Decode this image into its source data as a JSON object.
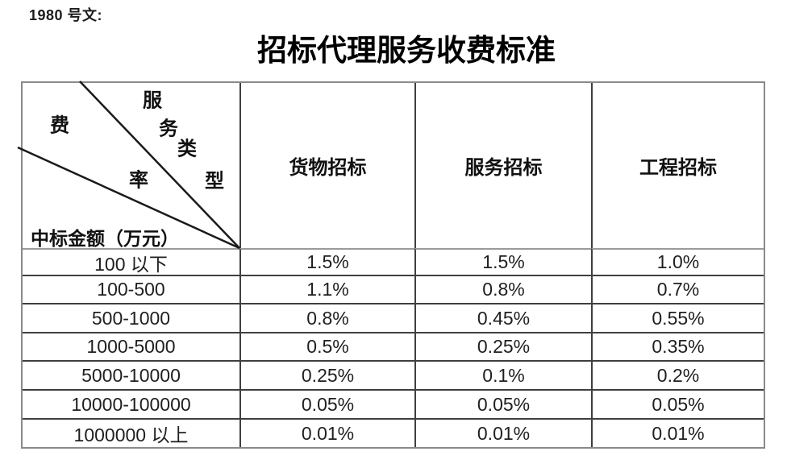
{
  "page": {
    "doc_ref": "1980 号文:",
    "title": "招标代理服务收费标准"
  },
  "table": {
    "corner": {
      "axis_top_right": "服务类型",
      "axis_middle": "费率",
      "axis_bottom_left": "中标金额（万元）"
    },
    "column_headers": [
      "货物招标",
      "服务招标",
      "工程招标"
    ],
    "rows": [
      {
        "amount_range": "100 以下",
        "values": [
          "1.5%",
          "1.5%",
          "1.0%"
        ]
      },
      {
        "amount_range": "100-500",
        "values": [
          "1.1%",
          "0.8%",
          "0.7%"
        ]
      },
      {
        "amount_range": "500-1000",
        "values": [
          "0.8%",
          "0.45%",
          "0.55%"
        ]
      },
      {
        "amount_range": "1000-5000",
        "values": [
          "0.5%",
          "0.25%",
          "0.35%"
        ]
      },
      {
        "amount_range": "5000-10000",
        "values": [
          "0.25%",
          "0.1%",
          "0.2%"
        ]
      },
      {
        "amount_range": "10000-100000",
        "values": [
          "0.05%",
          "0.05%",
          "0.05%"
        ]
      },
      {
        "amount_range": "1000000 以上",
        "values": [
          "0.01%",
          "0.01%",
          "0.01%"
        ]
      }
    ]
  },
  "colors": {
    "text": "#1c1c1c",
    "border_outer": "#8a8a8a",
    "border_inner": "#3f3f3f",
    "header_separator": "#9a9a9a",
    "diagonal_line": "#1a1a1a"
  }
}
